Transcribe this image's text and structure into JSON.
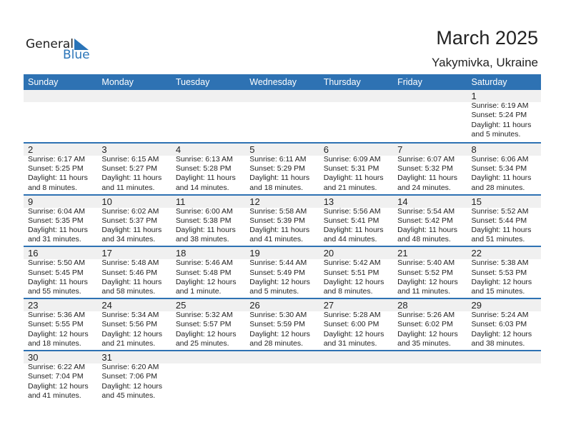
{
  "logo": {
    "general": "General",
    "blue": "Blue"
  },
  "header": {
    "title": "March 2025",
    "location": "Yakymivka, Ukraine"
  },
  "colors": {
    "accent": "#2e72b3",
    "band": "#f0f0f0"
  },
  "weekdays": [
    "Sunday",
    "Monday",
    "Tuesday",
    "Wednesday",
    "Thursday",
    "Friday",
    "Saturday"
  ],
  "weeks": [
    [
      null,
      null,
      null,
      null,
      null,
      null,
      {
        "d": "1",
        "sr": "Sunrise: 6:19 AM",
        "ss": "Sunset: 5:24 PM",
        "dl": "Daylight: 11 hours",
        "dm": "and 5 minutes."
      }
    ],
    [
      {
        "d": "2",
        "sr": "Sunrise: 6:17 AM",
        "ss": "Sunset: 5:25 PM",
        "dl": "Daylight: 11 hours",
        "dm": "and 8 minutes."
      },
      {
        "d": "3",
        "sr": "Sunrise: 6:15 AM",
        "ss": "Sunset: 5:27 PM",
        "dl": "Daylight: 11 hours",
        "dm": "and 11 minutes."
      },
      {
        "d": "4",
        "sr": "Sunrise: 6:13 AM",
        "ss": "Sunset: 5:28 PM",
        "dl": "Daylight: 11 hours",
        "dm": "and 14 minutes."
      },
      {
        "d": "5",
        "sr": "Sunrise: 6:11 AM",
        "ss": "Sunset: 5:29 PM",
        "dl": "Daylight: 11 hours",
        "dm": "and 18 minutes."
      },
      {
        "d": "6",
        "sr": "Sunrise: 6:09 AM",
        "ss": "Sunset: 5:31 PM",
        "dl": "Daylight: 11 hours",
        "dm": "and 21 minutes."
      },
      {
        "d": "7",
        "sr": "Sunrise: 6:07 AM",
        "ss": "Sunset: 5:32 PM",
        "dl": "Daylight: 11 hours",
        "dm": "and 24 minutes."
      },
      {
        "d": "8",
        "sr": "Sunrise: 6:06 AM",
        "ss": "Sunset: 5:34 PM",
        "dl": "Daylight: 11 hours",
        "dm": "and 28 minutes."
      }
    ],
    [
      {
        "d": "9",
        "sr": "Sunrise: 6:04 AM",
        "ss": "Sunset: 5:35 PM",
        "dl": "Daylight: 11 hours",
        "dm": "and 31 minutes."
      },
      {
        "d": "10",
        "sr": "Sunrise: 6:02 AM",
        "ss": "Sunset: 5:37 PM",
        "dl": "Daylight: 11 hours",
        "dm": "and 34 minutes."
      },
      {
        "d": "11",
        "sr": "Sunrise: 6:00 AM",
        "ss": "Sunset: 5:38 PM",
        "dl": "Daylight: 11 hours",
        "dm": "and 38 minutes."
      },
      {
        "d": "12",
        "sr": "Sunrise: 5:58 AM",
        "ss": "Sunset: 5:39 PM",
        "dl": "Daylight: 11 hours",
        "dm": "and 41 minutes."
      },
      {
        "d": "13",
        "sr": "Sunrise: 5:56 AM",
        "ss": "Sunset: 5:41 PM",
        "dl": "Daylight: 11 hours",
        "dm": "and 44 minutes."
      },
      {
        "d": "14",
        "sr": "Sunrise: 5:54 AM",
        "ss": "Sunset: 5:42 PM",
        "dl": "Daylight: 11 hours",
        "dm": "and 48 minutes."
      },
      {
        "d": "15",
        "sr": "Sunrise: 5:52 AM",
        "ss": "Sunset: 5:44 PM",
        "dl": "Daylight: 11 hours",
        "dm": "and 51 minutes."
      }
    ],
    [
      {
        "d": "16",
        "sr": "Sunrise: 5:50 AM",
        "ss": "Sunset: 5:45 PM",
        "dl": "Daylight: 11 hours",
        "dm": "and 55 minutes."
      },
      {
        "d": "17",
        "sr": "Sunrise: 5:48 AM",
        "ss": "Sunset: 5:46 PM",
        "dl": "Daylight: 11 hours",
        "dm": "and 58 minutes."
      },
      {
        "d": "18",
        "sr": "Sunrise: 5:46 AM",
        "ss": "Sunset: 5:48 PM",
        "dl": "Daylight: 12 hours",
        "dm": "and 1 minute."
      },
      {
        "d": "19",
        "sr": "Sunrise: 5:44 AM",
        "ss": "Sunset: 5:49 PM",
        "dl": "Daylight: 12 hours",
        "dm": "and 5 minutes."
      },
      {
        "d": "20",
        "sr": "Sunrise: 5:42 AM",
        "ss": "Sunset: 5:51 PM",
        "dl": "Daylight: 12 hours",
        "dm": "and 8 minutes."
      },
      {
        "d": "21",
        "sr": "Sunrise: 5:40 AM",
        "ss": "Sunset: 5:52 PM",
        "dl": "Daylight: 12 hours",
        "dm": "and 11 minutes."
      },
      {
        "d": "22",
        "sr": "Sunrise: 5:38 AM",
        "ss": "Sunset: 5:53 PM",
        "dl": "Daylight: 12 hours",
        "dm": "and 15 minutes."
      }
    ],
    [
      {
        "d": "23",
        "sr": "Sunrise: 5:36 AM",
        "ss": "Sunset: 5:55 PM",
        "dl": "Daylight: 12 hours",
        "dm": "and 18 minutes."
      },
      {
        "d": "24",
        "sr": "Sunrise: 5:34 AM",
        "ss": "Sunset: 5:56 PM",
        "dl": "Daylight: 12 hours",
        "dm": "and 21 minutes."
      },
      {
        "d": "25",
        "sr": "Sunrise: 5:32 AM",
        "ss": "Sunset: 5:57 PM",
        "dl": "Daylight: 12 hours",
        "dm": "and 25 minutes."
      },
      {
        "d": "26",
        "sr": "Sunrise: 5:30 AM",
        "ss": "Sunset: 5:59 PM",
        "dl": "Daylight: 12 hours",
        "dm": "and 28 minutes."
      },
      {
        "d": "27",
        "sr": "Sunrise: 5:28 AM",
        "ss": "Sunset: 6:00 PM",
        "dl": "Daylight: 12 hours",
        "dm": "and 31 minutes."
      },
      {
        "d": "28",
        "sr": "Sunrise: 5:26 AM",
        "ss": "Sunset: 6:02 PM",
        "dl": "Daylight: 12 hours",
        "dm": "and 35 minutes."
      },
      {
        "d": "29",
        "sr": "Sunrise: 5:24 AM",
        "ss": "Sunset: 6:03 PM",
        "dl": "Daylight: 12 hours",
        "dm": "and 38 minutes."
      }
    ],
    [
      {
        "d": "30",
        "sr": "Sunrise: 6:22 AM",
        "ss": "Sunset: 7:04 PM",
        "dl": "Daylight: 12 hours",
        "dm": "and 41 minutes."
      },
      {
        "d": "31",
        "sr": "Sunrise: 6:20 AM",
        "ss": "Sunset: 7:06 PM",
        "dl": "Daylight: 12 hours",
        "dm": "and 45 minutes."
      },
      null,
      null,
      null,
      null,
      null
    ]
  ]
}
